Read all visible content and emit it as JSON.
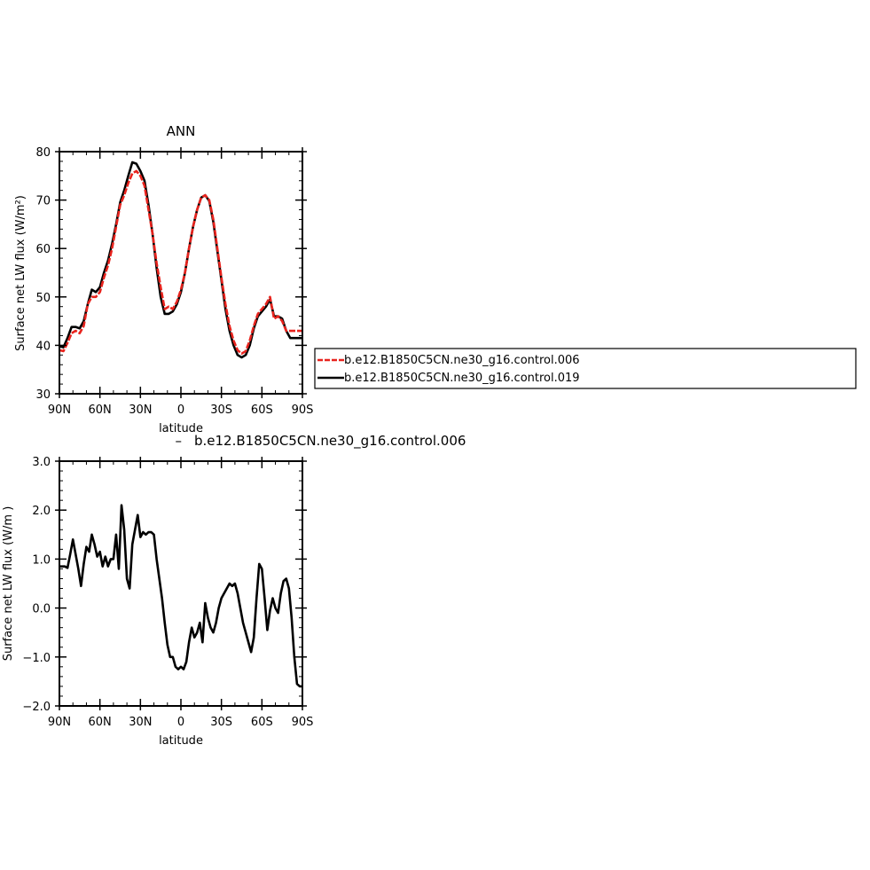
{
  "chart_data": [
    {
      "type": "line",
      "title": "ANN",
      "xlabel": "latitude",
      "ylabel": "Surface net LW flux (W/m²)",
      "xlim": [
        90,
        -90
      ],
      "ylim": [
        30,
        80
      ],
      "xticks": [
        90,
        60,
        30,
        0,
        -30,
        -60,
        -90
      ],
      "xtick_labels": [
        "90N",
        "60N",
        "30N",
        "0",
        "30S",
        "60S",
        "90S"
      ],
      "yticks": [
        30,
        40,
        50,
        60,
        70,
        80
      ],
      "ytick_labels": [
        "30",
        "40",
        "50",
        "60",
        "70",
        "80"
      ],
      "legend_position": "right",
      "series": [
        {
          "name": "b.e12.B1850C5CN.ne30_g16.control.006",
          "color": "#e8231d",
          "style": "dashed",
          "x": [
            90,
            87,
            84,
            81,
            78,
            75,
            72,
            69,
            66,
            63,
            60,
            57,
            54,
            51,
            48,
            45,
            42,
            39,
            36,
            33,
            30,
            27,
            24,
            21,
            18,
            15,
            12,
            9,
            6,
            3,
            0,
            -3,
            -6,
            -9,
            -12,
            -15,
            -18,
            -21,
            -24,
            -27,
            -30,
            -33,
            -36,
            -39,
            -42,
            -45,
            -48,
            -51,
            -54,
            -57,
            -60,
            -63,
            -66,
            -69,
            -72,
            -75,
            -78,
            -81,
            -84,
            -87,
            -90
          ],
          "y": [
            39.0,
            38.8,
            40.5,
            42.5,
            43.0,
            42.5,
            44.0,
            48.5,
            50.0,
            50.0,
            51.0,
            54.0,
            56.5,
            60.0,
            64.5,
            69.0,
            71.0,
            73.5,
            75.5,
            76.0,
            75.0,
            73.0,
            68.0,
            63.0,
            57.0,
            52.0,
            47.5,
            48.0,
            47.5,
            49.0,
            51.5,
            55.0,
            60.0,
            64.5,
            68.0,
            70.5,
            71.0,
            70.0,
            66.0,
            60.0,
            54.0,
            48.5,
            44.0,
            41.0,
            39.0,
            38.3,
            38.8,
            41.0,
            44.0,
            46.5,
            47.5,
            48.5,
            50.0,
            45.5,
            46.0,
            45.0,
            43.0,
            43.0,
            43.0,
            43.0,
            43.0
          ]
        },
        {
          "name": "b.e12.B1850C5CN.ne30_g16.control.019",
          "color": "#000000",
          "style": "solid",
          "x": [
            90,
            87,
            84,
            81,
            78,
            75,
            72,
            69,
            66,
            63,
            60,
            57,
            54,
            51,
            48,
            45,
            42,
            39,
            36,
            33,
            30,
            27,
            24,
            21,
            18,
            15,
            12,
            9,
            6,
            3,
            0,
            -3,
            -6,
            -9,
            -12,
            -15,
            -18,
            -21,
            -24,
            -27,
            -30,
            -33,
            -36,
            -39,
            -42,
            -45,
            -48,
            -51,
            -54,
            -57,
            -60,
            -63,
            -66,
            -69,
            -72,
            -75,
            -78,
            -81,
            -84,
            -87,
            -90
          ],
          "y": [
            39.8,
            39.6,
            41.5,
            43.8,
            43.8,
            43.5,
            45.0,
            48.5,
            51.5,
            51.0,
            52.0,
            55.0,
            57.5,
            61.0,
            65.0,
            69.5,
            72.0,
            75.0,
            77.8,
            77.5,
            76.0,
            74.0,
            69.0,
            63.0,
            56.0,
            50.0,
            46.5,
            46.5,
            47.0,
            48.5,
            51.0,
            55.0,
            60.0,
            64.5,
            68.0,
            70.5,
            71.0,
            69.8,
            65.5,
            59.5,
            53.5,
            47.5,
            43.0,
            40.0,
            38.0,
            37.5,
            38.0,
            40.0,
            43.5,
            46.0,
            47.0,
            48.0,
            49.5,
            46.0,
            46.0,
            45.5,
            43.0,
            41.5,
            41.5,
            41.5,
            41.5
          ]
        }
      ]
    },
    {
      "type": "line",
      "title": "b.e12.B1850C5CN.ne30_g16.control.006",
      "title_prefix": "–",
      "xlabel": "latitude",
      "ylabel": "Surface net LW flux (W/m )",
      "xlim": [
        90,
        -90
      ],
      "ylim": [
        -2.0,
        3.0
      ],
      "xticks": [
        90,
        60,
        30,
        0,
        -30,
        -60,
        -90
      ],
      "xtick_labels": [
        "90N",
        "60N",
        "30N",
        "0",
        "30S",
        "60S",
        "90S"
      ],
      "yticks": [
        -2.0,
        -1.0,
        0.0,
        1.0,
        2.0,
        3.0
      ],
      "ytick_labels": [
        "−2.0",
        "−1.0",
        "0.0",
        "1.0",
        "2.0",
        "3.0"
      ],
      "series": [
        {
          "color": "#000000",
          "x": [
            90,
            88,
            86,
            84,
            82,
            80,
            78,
            76,
            74,
            72,
            70,
            68,
            66,
            64,
            62,
            60,
            58,
            56,
            54,
            52,
            50,
            48,
            46,
            44,
            42,
            40,
            38,
            36,
            34,
            32,
            30,
            28,
            26,
            24,
            22,
            20,
            18,
            16,
            14,
            12,
            10,
            8,
            6,
            4,
            2,
            0,
            -2,
            -4,
            -6,
            -8,
            -10,
            -12,
            -14,
            -16,
            -18,
            -20,
            -22,
            -24,
            -26,
            -28,
            -30,
            -32,
            -34,
            -36,
            -38,
            -40,
            -42,
            -44,
            -46,
            -48,
            -50,
            -52,
            -54,
            -56,
            -58,
            -60,
            -62,
            -64,
            -66,
            -68,
            -70,
            -72,
            -74,
            -76,
            -78,
            -80,
            -82,
            -84,
            -86,
            -88,
            -90
          ],
          "y": [
            0.85,
            0.85,
            0.85,
            0.82,
            1.1,
            1.4,
            1.1,
            0.8,
            0.45,
            0.9,
            1.25,
            1.15,
            1.5,
            1.3,
            1.05,
            1.15,
            0.85,
            1.05,
            0.85,
            1.0,
            1.0,
            1.5,
            0.8,
            2.1,
            1.6,
            0.6,
            0.4,
            1.3,
            1.6,
            1.9,
            1.45,
            1.55,
            1.5,
            1.55,
            1.55,
            1.5,
            1.0,
            0.6,
            0.2,
            -0.3,
            -0.75,
            -1.0,
            -1.0,
            -1.2,
            -1.25,
            -1.2,
            -1.25,
            -1.1,
            -0.7,
            -0.4,
            -0.6,
            -0.5,
            -0.3,
            -0.7,
            0.1,
            -0.2,
            -0.4,
            -0.5,
            -0.3,
            0.0,
            0.2,
            0.3,
            0.4,
            0.5,
            0.45,
            0.5,
            0.3,
            0.0,
            -0.3,
            -0.5,
            -0.7,
            -0.9,
            -0.6,
            0.2,
            0.9,
            0.8,
            0.2,
            -0.45,
            -0.05,
            0.2,
            0.0,
            -0.1,
            0.3,
            0.55,
            0.6,
            0.4,
            -0.2,
            -1.0,
            -1.55,
            -1.6,
            -1.6
          ]
        }
      ]
    }
  ]
}
